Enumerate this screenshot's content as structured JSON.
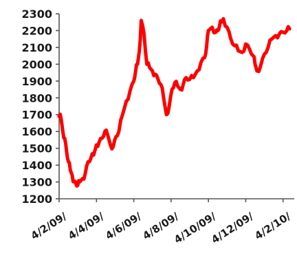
{
  "chart_data": {
    "type": "line",
    "title": "",
    "xlabel": "",
    "ylabel": "",
    "ylim": [
      1200,
      2300
    ],
    "y_ticks": [
      "2300",
      "2200",
      "2100",
      "2000",
      "1900",
      "1800",
      "1700",
      "1600",
      "1500",
      "1400",
      "1300",
      "1200"
    ],
    "x_ticks": [
      "4/2/09/",
      "4/4/09/",
      "4/6/09/",
      "4/8/09/",
      "4/10/09/",
      "4/12/09/",
      "4/2/10/"
    ],
    "x_tick_positions": [
      0,
      2,
      4,
      6,
      8,
      10,
      12
    ],
    "grid": false,
    "legend": "none",
    "series": [
      {
        "color": "#ff0000",
        "x": [
          0,
          0.1,
          0.2,
          0.3,
          0.4,
          0.5,
          0.6,
          0.7,
          0.8,
          0.9,
          1.0,
          1.1,
          1.25,
          1.4,
          1.55,
          1.7,
          1.85,
          2.0,
          2.15,
          2.3,
          2.45,
          2.6,
          2.75,
          2.9,
          3.05,
          3.2,
          3.4,
          3.6,
          3.8,
          4.0,
          4.1,
          4.2,
          4.3,
          4.4,
          4.55,
          4.7,
          4.85,
          5.0,
          5.15,
          5.3,
          5.45,
          5.6,
          5.75,
          5.9,
          6.05,
          6.2,
          6.35,
          6.5,
          6.65,
          6.8,
          7.0,
          7.2,
          7.4,
          7.6,
          7.8,
          7.9,
          8.0,
          8.2,
          8.4,
          8.5,
          8.6,
          8.7,
          8.8,
          9.0,
          9.2,
          9.4,
          9.6,
          9.8,
          10.0,
          10.2,
          10.4,
          10.5,
          10.6,
          10.8,
          11.0,
          11.2,
          11.4,
          11.6,
          11.8,
          12.0,
          12.2,
          12.35
        ],
        "values": [
          1690,
          1680,
          1600,
          1560,
          1480,
          1420,
          1370,
          1340,
          1300,
          1290,
          1280,
          1300,
          1320,
          1350,
          1420,
          1440,
          1460,
          1520,
          1540,
          1560,
          1600,
          1580,
          1520,
          1510,
          1570,
          1600,
          1700,
          1780,
          1840,
          1900,
          1960,
          2000,
          2080,
          2260,
          2180,
          2000,
          1980,
          1960,
          1940,
          1910,
          1880,
          1800,
          1700,
          1750,
          1850,
          1890,
          1870,
          1850,
          1880,
          1920,
          1910,
          1920,
          1960,
          2010,
          2040,
          2100,
          2200,
          2220,
          2190,
          2200,
          2230,
          2250,
          2270,
          2220,
          2150,
          2110,
          2080,
          2070,
          2120,
          2090,
          2050,
          2000,
          1960,
          1990,
          2060,
          2100,
          2150,
          2170,
          2180,
          2190,
          2200,
          2210
        ]
      }
    ]
  }
}
